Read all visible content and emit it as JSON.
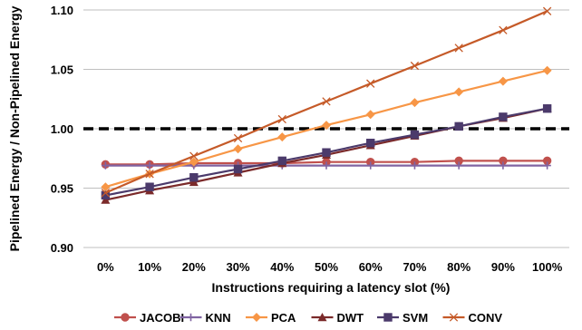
{
  "chart_data": {
    "type": "line",
    "title": "",
    "xlabel": "Instructions requiring a latency slot (%)",
    "ylabel": "Pipelined Energy / Non-Pipelined Energy",
    "categories": [
      "0%",
      "10%",
      "20%",
      "30%",
      "40%",
      "50%",
      "60%",
      "70%",
      "80%",
      "90%",
      "100%"
    ],
    "ylim": [
      0.9,
      1.1
    ],
    "yticks": [
      "0.90",
      "0.95",
      "1.00",
      "1.05",
      "1.10"
    ],
    "grid": true,
    "legend_position": "bottom",
    "reference_line": {
      "y": 1.0,
      "style": "dashed",
      "color": "#000000"
    },
    "series": [
      {
        "name": "JACOBI",
        "color": "#c0504d",
        "marker": "circle",
        "values": [
          0.97,
          0.97,
          0.971,
          0.971,
          0.971,
          0.972,
          0.972,
          0.972,
          0.973,
          0.973,
          0.973
        ]
      },
      {
        "name": "KNN",
        "color": "#8064a2",
        "marker": "plus",
        "values": [
          0.969,
          0.969,
          0.969,
          0.969,
          0.969,
          0.969,
          0.969,
          0.969,
          0.969,
          0.969,
          0.969
        ]
      },
      {
        "name": "PCA",
        "color": "#f79646",
        "marker": "diamond",
        "values": [
          0.951,
          0.962,
          0.972,
          0.983,
          0.993,
          1.003,
          1.012,
          1.022,
          1.031,
          1.04,
          1.049
        ]
      },
      {
        "name": "DWT",
        "color": "#7b2a2a",
        "marker": "triangle",
        "values": [
          0.94,
          0.948,
          0.955,
          0.963,
          0.971,
          0.978,
          0.986,
          0.994,
          1.002,
          1.009,
          1.017
        ]
      },
      {
        "name": "SVM",
        "color": "#4b3a6b",
        "marker": "square",
        "values": [
          0.944,
          0.951,
          0.959,
          0.966,
          0.973,
          0.98,
          0.988,
          0.995,
          1.002,
          1.01,
          1.017
        ]
      },
      {
        "name": "CONV",
        "color": "#c55a28",
        "marker": "x",
        "values": [
          0.946,
          0.962,
          0.977,
          0.992,
          1.008,
          1.023,
          1.038,
          1.053,
          1.068,
          1.083,
          1.099
        ]
      }
    ]
  }
}
